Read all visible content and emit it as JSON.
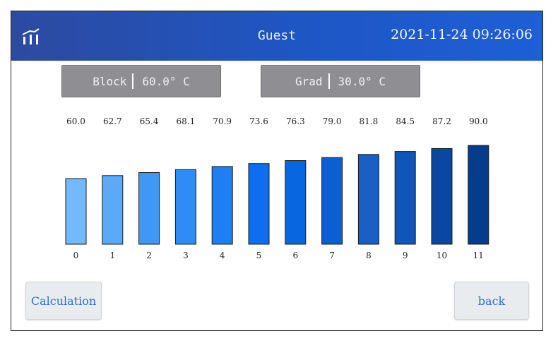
{
  "header": {
    "user": "Guest",
    "datetime": "2021-11-24 09:26:06",
    "logo_icon": "signal-chart-icon"
  },
  "block_field": {
    "label": "Block",
    "value": "60.0° C"
  },
  "grad_field": {
    "label": "Grad",
    "value": "30.0° C"
  },
  "chart_data": {
    "type": "bar",
    "categories": [
      "0",
      "1",
      "2",
      "3",
      "4",
      "5",
      "6",
      "7",
      "8",
      "9",
      "10",
      "11"
    ],
    "values": [
      60.0,
      62.7,
      65.4,
      68.1,
      70.9,
      73.6,
      76.3,
      79.0,
      81.8,
      84.5,
      87.2,
      90.0
    ],
    "value_labels": [
      "60.0",
      "62.7",
      "65.4",
      "68.1",
      "70.9",
      "73.6",
      "76.3",
      "79.0",
      "81.8",
      "84.5",
      "87.2",
      "90.0"
    ],
    "colors": [
      "#74b9fb",
      "#5aaaf8",
      "#3d98f6",
      "#2f8cf6",
      "#1f7ef4",
      "#0d6ef0",
      "#0866e0",
      "#0a5fd2",
      "#195fc4",
      "#0f56b6",
      "#0a47a0",
      "#063c8c"
    ]
  },
  "buttons": {
    "calculation_label": "Calculation",
    "back_label": "back"
  }
}
